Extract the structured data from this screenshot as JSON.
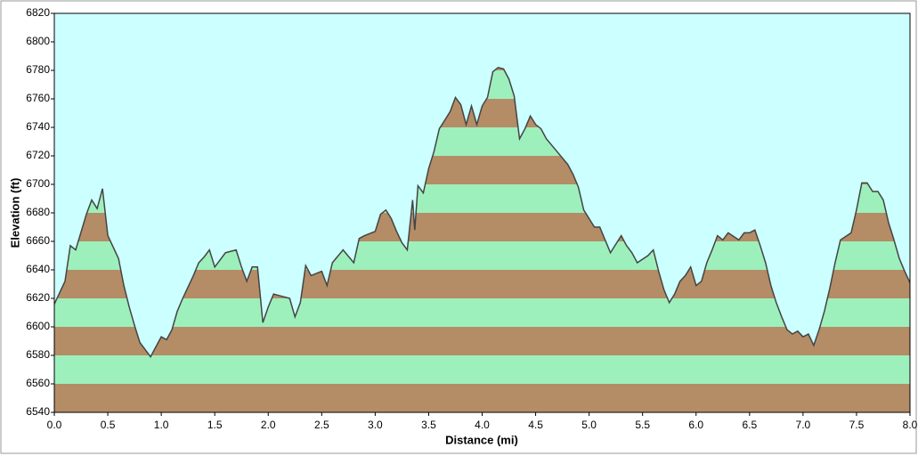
{
  "chart_data": {
    "type": "area",
    "x_label": "Distance  (mi)",
    "y_label": "Elevation (ft)",
    "x": [
      0,
      0.1,
      0.15,
      0.2,
      0.3,
      0.35,
      0.4,
      0.45,
      0.5,
      0.6,
      0.65,
      0.7,
      0.75,
      0.8,
      0.85,
      0.9,
      0.95,
      1.0,
      1.05,
      1.1,
      1.15,
      1.2,
      1.3,
      1.35,
      1.4,
      1.45,
      1.5,
      1.55,
      1.6,
      1.7,
      1.75,
      1.8,
      1.85,
      1.9,
      1.95,
      2.0,
      2.05,
      2.1,
      2.2,
      2.25,
      2.3,
      2.35,
      2.4,
      2.5,
      2.55,
      2.6,
      2.7,
      2.8,
      2.85,
      2.9,
      3.0,
      3.05,
      3.1,
      3.15,
      3.2,
      3.25,
      3.3,
      3.35,
      3.37,
      3.4,
      3.45,
      3.5,
      3.55,
      3.6,
      3.65,
      3.7,
      3.75,
      3.8,
      3.85,
      3.9,
      3.95,
      4.0,
      4.05,
      4.1,
      4.15,
      4.2,
      4.25,
      4.3,
      4.35,
      4.4,
      4.45,
      4.5,
      4.55,
      4.6,
      4.7,
      4.8,
      4.85,
      4.9,
      4.95,
      5.0,
      5.05,
      5.1,
      5.15,
      5.2,
      5.3,
      5.35,
      5.4,
      5.45,
      5.55,
      5.6,
      5.65,
      5.7,
      5.75,
      5.8,
      5.85,
      5.9,
      5.95,
      6.0,
      6.05,
      6.1,
      6.15,
      6.2,
      6.25,
      6.3,
      6.4,
      6.45,
      6.5,
      6.55,
      6.6,
      6.65,
      6.7,
      6.75,
      6.8,
      6.85,
      6.9,
      6.95,
      7.0,
      7.05,
      7.1,
      7.15,
      7.2,
      7.25,
      7.3,
      7.35,
      7.45,
      7.5,
      7.55,
      7.6,
      7.65,
      7.7,
      7.75,
      7.8,
      7.85,
      7.9,
      7.95,
      8.0
    ],
    "values": [
      6616,
      6632,
      6657,
      6654,
      6679,
      6689,
      6683,
      6697,
      6664,
      6648,
      6629,
      6614,
      6601,
      6589,
      6584,
      6579,
      6586,
      6593,
      6591,
      6598,
      6611,
      6620,
      6636,
      6645,
      6649,
      6654,
      6642,
      6647,
      6652,
      6654,
      6642,
      6632,
      6642,
      6642,
      6603,
      6614,
      6623,
      6622,
      6620,
      6607,
      6617,
      6643,
      6636,
      6639,
      6629,
      6645,
      6654,
      6645,
      6662,
      6664,
      6667,
      6679,
      6682,
      6676,
      6667,
      6659,
      6654,
      6689,
      6668,
      6699,
      6694,
      6711,
      6723,
      6739,
      6745,
      6751,
      6761,
      6756,
      6742,
      6755,
      6742,
      6755,
      6761,
      6779,
      6782,
      6781,
      6774,
      6762,
      6732,
      6739,
      6748,
      6742,
      6739,
      6732,
      6723,
      6714,
      6707,
      6698,
      6682,
      6676,
      6670,
      6670,
      6661,
      6652,
      6664,
      6657,
      6652,
      6645,
      6650,
      6654,
      6639,
      6626,
      6617,
      6623,
      6632,
      6636,
      6642,
      6629,
      6632,
      6645,
      6654,
      6664,
      6661,
      6666,
      6661,
      6666,
      6666,
      6668,
      6657,
      6645,
      6629,
      6617,
      6607,
      6598,
      6595,
      6597,
      6593,
      6595,
      6587,
      6598,
      6611,
      6627,
      6645,
      6661,
      6666,
      6682,
      6701,
      6701,
      6695,
      6695,
      6689,
      6673,
      6661,
      6648,
      6639,
      6631
    ],
    "xlim": [
      0,
      8
    ],
    "xticks": [
      {
        "value": 0,
        "label": "0.0"
      },
      {
        "value": 0.5,
        "label": "0.5"
      },
      {
        "value": 1,
        "label": "1.0"
      },
      {
        "value": 1.5,
        "label": "1.5"
      },
      {
        "value": 2,
        "label": "2.0"
      },
      {
        "value": 2.5,
        "label": "2.5"
      },
      {
        "value": 3,
        "label": "3.0"
      },
      {
        "value": 3.5,
        "label": "3.5"
      },
      {
        "value": 4,
        "label": "4.0"
      },
      {
        "value": 4.5,
        "label": "4.5"
      },
      {
        "value": 5,
        "label": "5.0"
      },
      {
        "value": 5.5,
        "label": "5.5"
      },
      {
        "value": 6,
        "label": "6.0"
      },
      {
        "value": 6.5,
        "label": "6.5"
      },
      {
        "value": 7,
        "label": "7.0"
      },
      {
        "value": 7.5,
        "label": "7.5"
      },
      {
        "value": 8,
        "label": "8.0"
      }
    ],
    "ylim": [
      6540,
      6820
    ],
    "yticks": [
      6540,
      6560,
      6580,
      6600,
      6620,
      6640,
      6660,
      6680,
      6700,
      6720,
      6740,
      6760,
      6780,
      6800,
      6820
    ],
    "band_colors": [
      "#b48c66",
      "#9df0bc"
    ],
    "line_color": "#444444",
    "background": "#ccffff"
  }
}
